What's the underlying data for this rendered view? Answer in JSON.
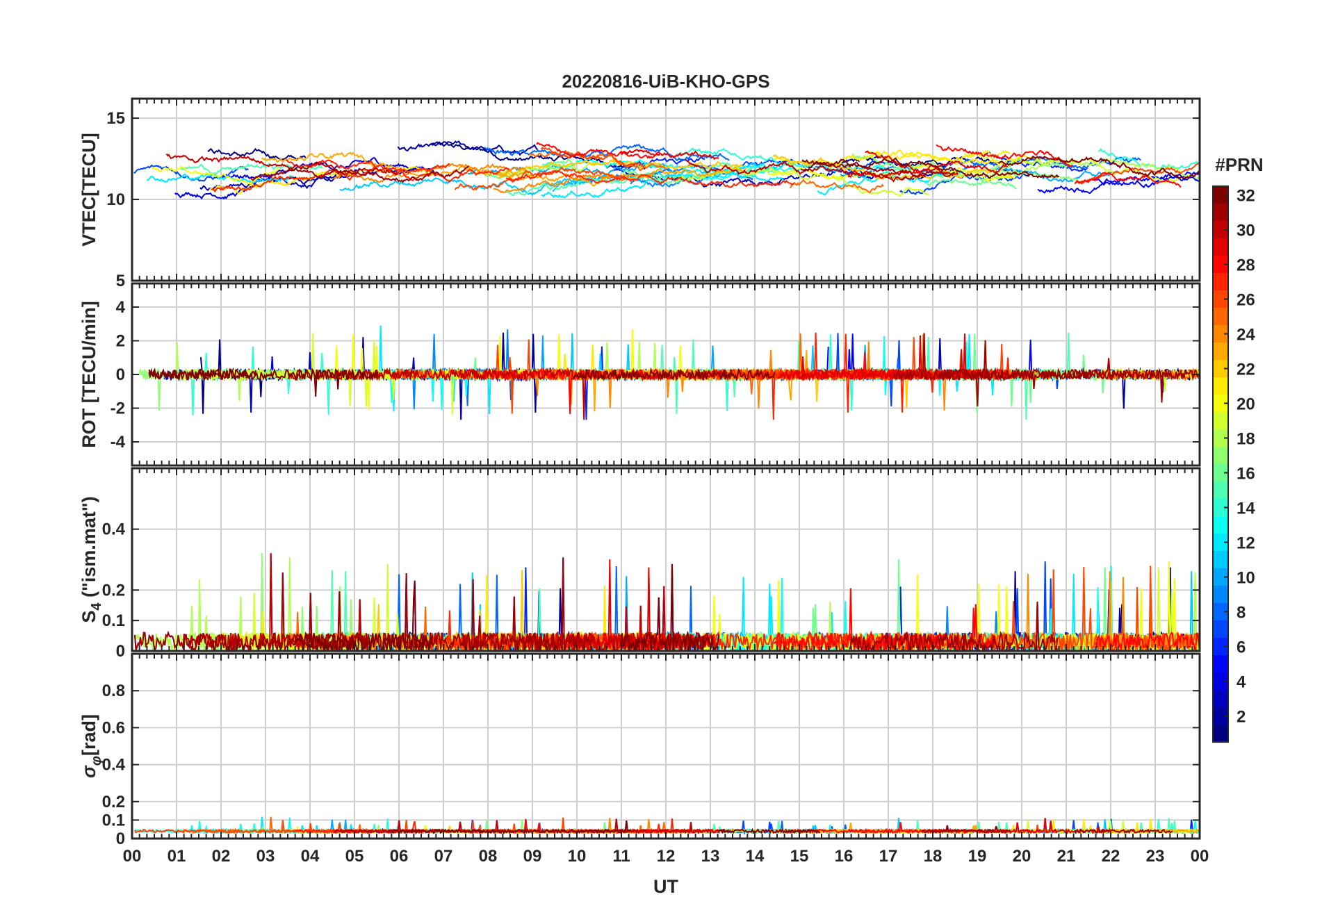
{
  "chart_data": {
    "type": "line",
    "title": "20220816-UiB-KHO-GPS",
    "xlabel": "UT",
    "x_range_hours": [
      0,
      24
    ],
    "x_tick_labels": [
      "00",
      "01",
      "02",
      "03",
      "04",
      "05",
      "06",
      "07",
      "08",
      "09",
      "10",
      "11",
      "12",
      "13",
      "14",
      "15",
      "16",
      "17",
      "18",
      "19",
      "20",
      "21",
      "22",
      "23",
      "00"
    ],
    "colorbar": {
      "title": "#PRN",
      "range": [
        1,
        32
      ],
      "tick_labels": [
        "2",
        "4",
        "6",
        "8",
        "10",
        "12",
        "14",
        "16",
        "18",
        "20",
        "22",
        "24",
        "26",
        "28",
        "30",
        "32"
      ],
      "colormap": "jet"
    },
    "panels": [
      {
        "id": "vtec",
        "ylabel": "VTEC[TECU]",
        "ylim": [
          5,
          16.2
        ],
        "y_ticks": [
          5,
          10,
          15
        ],
        "y_tick_labels": [
          "5",
          "10",
          "15"
        ],
        "baseline": 11.8,
        "amplitude": 1.6,
        "noise": 0.18,
        "drift": true
      },
      {
        "id": "rot",
        "ylabel": "ROT [TECU/min]",
        "ylim": [
          -5.4,
          5.4
        ],
        "y_ticks": [
          -4,
          -2,
          0,
          2,
          4
        ],
        "y_tick_labels": [
          "-4",
          "-2",
          "0",
          "2",
          "4"
        ],
        "baseline": 0,
        "amplitude": 0.25,
        "noise": 0.3,
        "drift": false
      },
      {
        "id": "s4",
        "ylabel": "S4 (\"ism.mat\")",
        "ylabel_main": "S",
        "ylabel_sub": "4",
        "ylabel_rest": " (\"ism.mat\")",
        "ylim": [
          0,
          0.6
        ],
        "y_ticks": [
          0,
          0.1,
          0.2,
          0.4
        ],
        "y_tick_labels": [
          "0",
          "0.1",
          "0.2",
          "0.4"
        ],
        "baseline": 0.03,
        "amplitude": 0.03,
        "noise": 0.03,
        "drift": false
      },
      {
        "id": "sigma",
        "ylabel": "σφ[rad]",
        "ylabel_main": "σ",
        "ylabel_sub": "φ",
        "ylabel_rest": "[rad]",
        "ylim": [
          0,
          1
        ],
        "y_ticks": [
          0,
          0.1,
          0.2,
          0.4,
          0.6,
          0.8
        ],
        "y_tick_labels": [
          "0",
          "0.1",
          "0.2",
          "0.4",
          "0.6",
          "0.8"
        ],
        "baseline": 0.04,
        "amplitude": 0.005,
        "noise": 0.008,
        "drift": false
      }
    ],
    "series_count": 32,
    "series_note": "one trace per GPS PRN (1-32), colored by PRN via colorbar; segments are satellite passes"
  }
}
